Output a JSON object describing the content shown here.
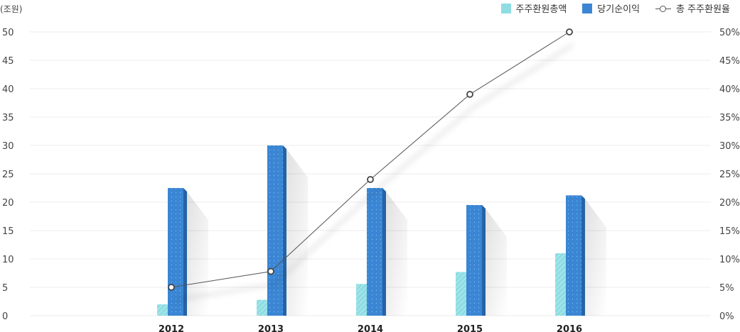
{
  "chart_data": {
    "type": "bar",
    "categories": [
      "2012",
      "2013",
      "2014",
      "2015",
      "2016"
    ],
    "series": [
      {
        "name": "주주환원총액",
        "type": "bar",
        "axis": "left",
        "color": "#8fdde3",
        "values": [
          2,
          2.8,
          5.6,
          7.7,
          11
        ]
      },
      {
        "name": "당기순이익",
        "type": "bar",
        "axis": "left",
        "color": "#3a86d4",
        "values": [
          22.5,
          30,
          22.5,
          19.5,
          21.2
        ]
      },
      {
        "name": "총 주주환원율",
        "type": "line",
        "axis": "right",
        "color": "#555555",
        "values": [
          5,
          7.8,
          24,
          39,
          50
        ]
      }
    ],
    "y_left": {
      "unit_label": "(조원)",
      "ylim": [
        0,
        50
      ],
      "ticks": [
        "0",
        "5",
        "10",
        "15",
        "20",
        "25",
        "30",
        "35",
        "40",
        "45",
        "50"
      ]
    },
    "y_right": {
      "ylim": [
        0,
        50
      ],
      "ticks": [
        "0%",
        "5%",
        "10%",
        "15%",
        "20%",
        "25%",
        "30%",
        "35%",
        "40%",
        "45%",
        "50%"
      ]
    },
    "grid": true,
    "legend_position": "top-right"
  },
  "legend": {
    "items": [
      {
        "label": "주주환원총액"
      },
      {
        "label": "당기순이익"
      },
      {
        "label": "총 주주환원율"
      }
    ]
  }
}
